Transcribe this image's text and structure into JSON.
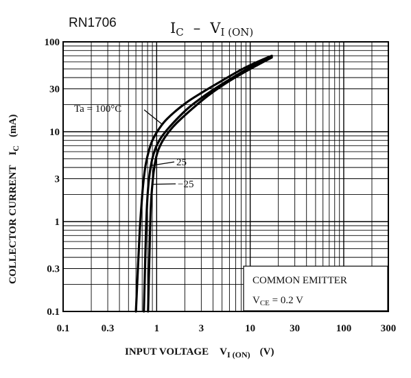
{
  "chart_data": {
    "type": "line",
    "part_number": "RN1706",
    "title": {
      "main": "I",
      "main_sub": "C",
      "dash": "–",
      "var": "V",
      "var_sub": "I (ON)"
    },
    "xlabel": {
      "text": "INPUT VOLTAGE",
      "var": "V",
      "var_sub": "I (ON)",
      "unit": "(V)"
    },
    "ylabel": {
      "text": "COLLECTOR CURRENT",
      "var": "I",
      "var_sub": "C",
      "unit": "(mA)"
    },
    "xscale": "log",
    "yscale": "log",
    "xlim": [
      0.1,
      300
    ],
    "ylim": [
      0.1,
      100
    ],
    "grid": true,
    "x_ticks": [
      {
        "value": 0.1,
        "label": "0.1"
      },
      {
        "value": 0.3,
        "label": "0.3"
      },
      {
        "value": 1,
        "label": "1"
      },
      {
        "value": 3,
        "label": "3"
      },
      {
        "value": 10,
        "label": "10"
      },
      {
        "value": 30,
        "label": "30"
      },
      {
        "value": 100,
        "label": "100"
      },
      {
        "value": 300,
        "label": "300"
      }
    ],
    "y_ticks": [
      {
        "value": 0.1,
        "label": "0.1"
      },
      {
        "value": 0.3,
        "label": "0.3"
      },
      {
        "value": 1,
        "label": "1"
      },
      {
        "value": 3,
        "label": "3"
      },
      {
        "value": 10,
        "label": "10"
      },
      {
        "value": 30,
        "label": "30"
      },
      {
        "value": 100,
        "label": "100"
      }
    ],
    "conditions_box": {
      "line1": "COMMON EMITTER",
      "line2_var": "V",
      "line2_sub": "CE",
      "line2_value": " = 0.2 V"
    },
    "series": [
      {
        "name": "Ta = 100°C",
        "x": [
          0.6,
          0.63,
          0.66,
          0.69,
          0.72,
          0.76,
          0.82,
          0.9,
          1.05,
          1.3,
          2.0,
          3.0,
          5.0,
          8.0,
          12.0,
          17.0
        ],
        "y": [
          0.1,
          0.3,
          0.8,
          1.6,
          2.7,
          4.2,
          6.0,
          8.0,
          10.6,
          14.0,
          20.5,
          27.0,
          37.0,
          49.0,
          60.0,
          70.0
        ]
      },
      {
        "name": "25",
        "x": [
          0.73,
          0.75,
          0.77,
          0.79,
          0.82,
          0.86,
          0.92,
          1.0,
          1.15,
          1.5,
          2.2,
          3.4,
          5.5,
          9.0,
          13.0,
          17.0
        ],
        "y": [
          0.1,
          0.3,
          0.8,
          1.6,
          2.7,
          4.0,
          5.5,
          7.0,
          9.0,
          12.5,
          18.5,
          26.0,
          36.0,
          49.0,
          60.0,
          69.0
        ]
      },
      {
        "name": "−25",
        "x": [
          0.81,
          0.83,
          0.85,
          0.87,
          0.9,
          0.93,
          0.98,
          1.05,
          1.2,
          1.55,
          2.4,
          3.6,
          5.7,
          9.5,
          13.5,
          17.0
        ],
        "y": [
          0.1,
          0.3,
          0.8,
          1.6,
          2.6,
          3.6,
          5.0,
          6.4,
          8.4,
          11.8,
          18.0,
          25.5,
          35.5,
          48.5,
          59.0,
          67.0
        ]
      }
    ],
    "annotations": [
      {
        "text": "Ta = 100°C",
        "series": 0
      },
      {
        "text": "25",
        "series": 1
      },
      {
        "text": "−25",
        "series": 2
      }
    ]
  }
}
